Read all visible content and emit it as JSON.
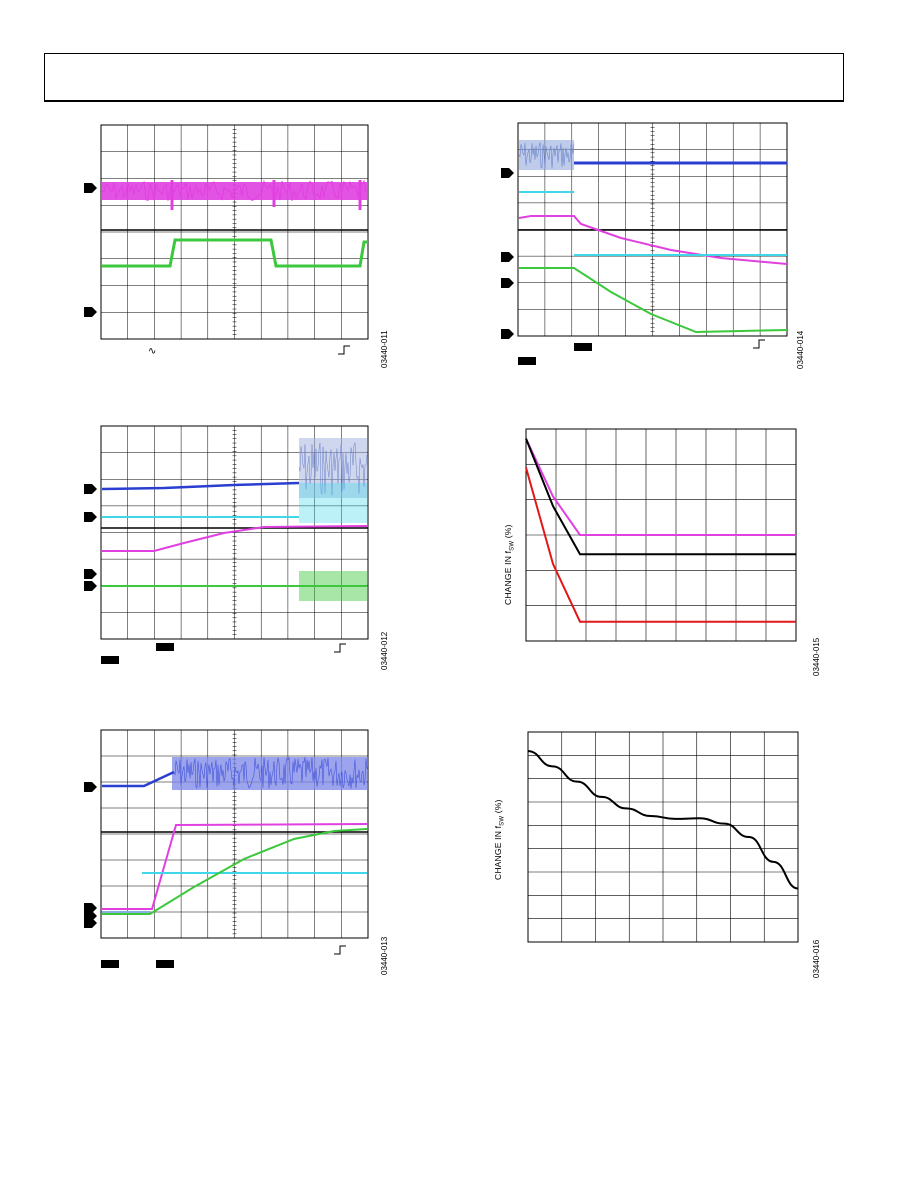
{
  "figures": {
    "scope_1": {
      "figure_id": "03440-011"
    },
    "scope_2": {
      "figure_id": "03440-014"
    },
    "scope_3": {
      "figure_id": "03440-012"
    },
    "scope_4": {
      "figure_id": "03440-013"
    },
    "graph_1": {
      "figure_id": "03440-015"
    },
    "graph_2": {
      "figure_id": "03440-016"
    }
  },
  "axis_labels": {
    "graph_1_ylabel_main": "CHANGE IN f",
    "graph_1_ylabel_sub": "SW",
    "graph_1_ylabel_unit": " (%)",
    "graph_2_ylabel_main": "CHANGE IN f",
    "graph_2_ylabel_sub": "SW",
    "graph_2_ylabel_unit": " (%)"
  },
  "colors": {
    "magenta": "#e040e0",
    "green": "#3cc83c",
    "blue": "#2a3fd0",
    "cyan": "#40d8e8",
    "black": "#000000",
    "red": "#e01818",
    "grid": "#000000"
  },
  "chart_data": [
    {
      "type": "line",
      "series": [
        {
          "values": [
            [
              0,
              100
            ],
            [
              5,
              92
            ],
            [
              10,
              84
            ],
            [
              15,
              76
            ],
            [
              20,
              70
            ],
            [
              25,
              66
            ],
            [
              30,
              64.5
            ],
            [
              35,
              64.8
            ],
            [
              40,
              62
            ],
            [
              45,
              55
            ],
            [
              50,
              42
            ],
            [
              55,
              28
            ]
          ]
        }
      ],
      "xlim": [
        0,
        55
      ],
      "ylim": [
        0,
        110
      ],
      "grid": true
    },
    {
      "type": "line",
      "series": [
        {
          "values": [
            [
              0,
              105
            ],
            [
              5,
              75
            ],
            [
              10,
              55
            ],
            [
              50,
              55
            ]
          ]
        },
        {
          "values": [
            [
              0,
              105
            ],
            [
              5,
              70
            ],
            [
              10,
              45
            ],
            [
              50,
              45
            ]
          ]
        },
        {
          "values": [
            [
              0,
              90
            ],
            [
              5,
              40
            ],
            [
              10,
              10
            ],
            [
              50,
              10
            ]
          ]
        }
      ],
      "xlim": [
        0,
        50
      ],
      "ylim": [
        0,
        110
      ],
      "grid": true
    }
  ]
}
